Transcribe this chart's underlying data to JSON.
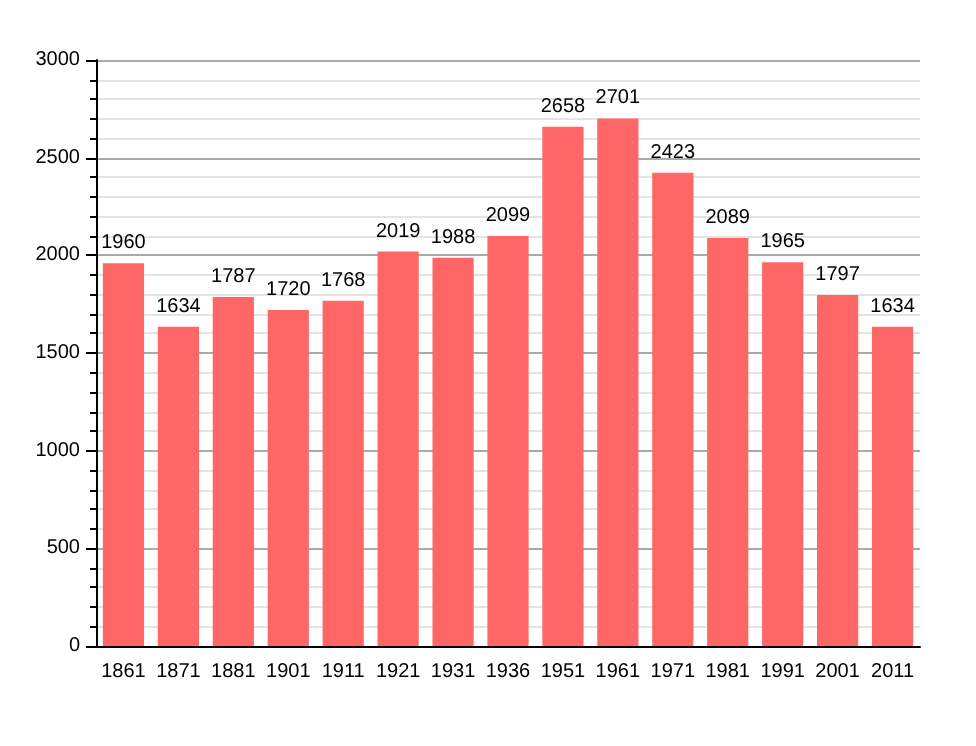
{
  "chart_data": {
    "type": "bar",
    "categories": [
      "1861",
      "1871",
      "1881",
      "1901",
      "1911",
      "1921",
      "1931",
      "1936",
      "1951",
      "1961",
      "1971",
      "1981",
      "1991",
      "2001",
      "2011"
    ],
    "values": [
      1960,
      1634,
      1787,
      1720,
      1768,
      2019,
      1988,
      2099,
      2658,
      2701,
      2423,
      2089,
      1965,
      1797,
      1634
    ],
    "color": "#ff6666",
    "ylim": [
      0,
      3000
    ],
    "yticks": [
      0,
      500,
      1000,
      1500,
      2000,
      2500,
      3000
    ],
    "grid": "y",
    "data_labels": true
  }
}
